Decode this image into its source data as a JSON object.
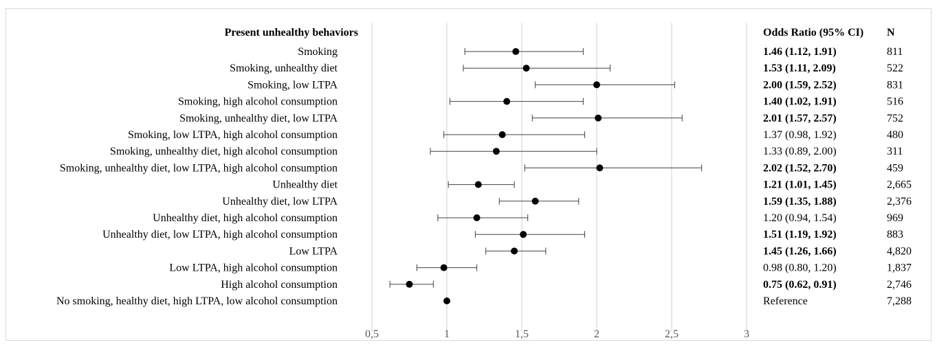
{
  "chart_data": {
    "type": "forest",
    "title": "",
    "xlabel": "",
    "ylabel": "",
    "xlim": [
      0.5,
      3
    ],
    "x_ticks": [
      "0,5",
      "1",
      "1,5",
      "2",
      "2,5",
      "3"
    ],
    "x_tick_values": [
      0.5,
      1,
      1.5,
      2,
      2.5,
      3
    ],
    "grid": true,
    "reference_line": 1,
    "headers": {
      "behaviors": "Present unhealthy behaviors",
      "or": "Odds Ratio (95% CI)",
      "n": "N"
    },
    "rows": [
      {
        "label": "Smoking",
        "or": 1.46,
        "lo": 1.12,
        "hi": 1.91,
        "or_text": "1.46 (1.12, 1.91)",
        "bold": true,
        "n": "811"
      },
      {
        "label": "Smoking, unhealthy diet",
        "or": 1.53,
        "lo": 1.11,
        "hi": 2.09,
        "or_text": "1.53 (1.11, 2.09)",
        "bold": true,
        "n": "522"
      },
      {
        "label": "Smoking, low LTPA",
        "or": 2.0,
        "lo": 1.59,
        "hi": 2.52,
        "or_text": "2.00 (1.59, 2.52)",
        "bold": true,
        "n": "831"
      },
      {
        "label": "Smoking, high alcohol consumption",
        "or": 1.4,
        "lo": 1.02,
        "hi": 1.91,
        "or_text": "1.40 (1.02, 1.91)",
        "bold": true,
        "n": "516"
      },
      {
        "label": "Smoking, unhealthy diet, low LTPA",
        "or": 2.01,
        "lo": 1.57,
        "hi": 2.57,
        "or_text": "2.01 (1.57, 2.57)",
        "bold": true,
        "n": "752"
      },
      {
        "label": "Smoking, low LTPA, high alcohol consumption",
        "or": 1.37,
        "lo": 0.98,
        "hi": 1.92,
        "or_text": "1.37 (0.98, 1.92)",
        "bold": false,
        "n": "480"
      },
      {
        "label": "Smoking, unhealthy diet, high alcohol consumption",
        "or": 1.33,
        "lo": 0.89,
        "hi": 2.0,
        "or_text": "1.33 (0.89, 2.00)",
        "bold": false,
        "n": "311"
      },
      {
        "label": "Smoking, unhealthy diet, low LTPA, high alcohol consumption",
        "or": 2.02,
        "lo": 1.52,
        "hi": 2.7,
        "or_text": "2.02 (1.52, 2.70)",
        "bold": true,
        "n": "459"
      },
      {
        "label": "Unhealthy diet",
        "or": 1.21,
        "lo": 1.01,
        "hi": 1.45,
        "or_text": "1.21 (1.01, 1.45)",
        "bold": true,
        "n": "2,665"
      },
      {
        "label": "Unhealthy diet, low LTPA",
        "or": 1.59,
        "lo": 1.35,
        "hi": 1.88,
        "or_text": "1.59 (1.35, 1.88)",
        "bold": true,
        "n": "2,376"
      },
      {
        "label": "Unhealthy diet, high alcohol consumption",
        "or": 1.2,
        "lo": 0.94,
        "hi": 1.54,
        "or_text": "1.20 (0.94, 1.54)",
        "bold": false,
        "n": "969"
      },
      {
        "label": "Unhealthy diet, low LTPA, high alcohol consumption",
        "or": 1.51,
        "lo": 1.19,
        "hi": 1.92,
        "or_text": "1.51 (1.19, 1.92)",
        "bold": true,
        "n": "883"
      },
      {
        "label": "Low LTPA",
        "or": 1.45,
        "lo": 1.26,
        "hi": 1.66,
        "or_text": "1.45 (1.26, 1.66)",
        "bold": true,
        "n": "4,820"
      },
      {
        "label": "Low LTPA, high alcohol consumption",
        "or": 0.98,
        "lo": 0.8,
        "hi": 1.2,
        "or_text": "0.98 (0.80, 1.20)",
        "bold": false,
        "n": "1,837"
      },
      {
        "label": "High alcohol consumption",
        "or": 0.75,
        "lo": 0.62,
        "hi": 0.91,
        "or_text": "0.75 (0.62, 0.91)",
        "bold": true,
        "n": "2,746"
      },
      {
        "label": "No smoking, healthy diet, high LTPA, low alcohol consumption",
        "or": 1.0,
        "lo": null,
        "hi": null,
        "or_text": "Reference",
        "bold": false,
        "n": "7,288"
      }
    ],
    "colors": {
      "marker": "#000000",
      "whisker": "#404040",
      "grid": "#d0d0d0"
    }
  }
}
